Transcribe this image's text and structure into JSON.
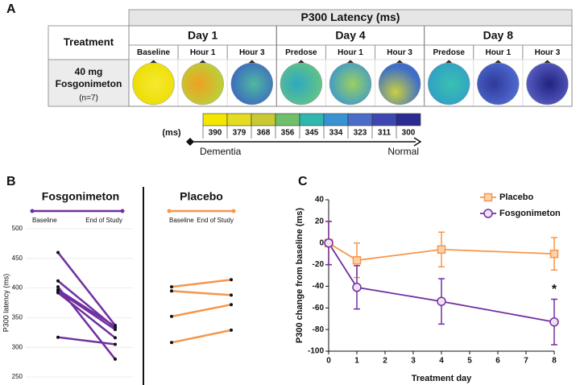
{
  "panel_labels": [
    "A",
    "B",
    "C"
  ],
  "panel_a": {
    "title": "P300 Latency (ms)",
    "treatment_header": "Treatment",
    "days": [
      {
        "label": "Day 1",
        "timepoints": [
          "Baseline",
          "Hour 1",
          "Hour 3"
        ]
      },
      {
        "label": "Day 4",
        "timepoints": [
          "Predose",
          "Hour 1",
          "Hour 3"
        ]
      },
      {
        "label": "Day 8",
        "timepoints": [
          "Predose",
          "Hour 1",
          "Hour 3"
        ]
      }
    ],
    "treatment_lines": [
      "40 mg",
      "Fosgonimeton"
    ],
    "n": "(n=7)",
    "colorbar": {
      "unit": "(ms)",
      "values": [
        390,
        379,
        368,
        356,
        345,
        334,
        323,
        311,
        300
      ],
      "colors": [
        "#f3e600",
        "#e3dc22",
        "#c9c934",
        "#6fbf6c",
        "#2db7ae",
        "#3a92d2",
        "#4a6ec8",
        "#3e47b0",
        "#2b2b92"
      ],
      "left_label": "Dementia",
      "right_label": "Normal"
    }
  },
  "chart_data": [
    {
      "type": "paired",
      "title": "Fosgonimeton",
      "categories": [
        "Baseline",
        "End of Study"
      ],
      "color": "#7030a0",
      "ylabel": "P300 latency (ms)",
      "ylim": [
        250,
        500
      ],
      "yticks": [
        250,
        300,
        350,
        400,
        450,
        500
      ],
      "grid": true,
      "series": [
        {
          "values": [
            460,
            337
          ]
        },
        {
          "values": [
            412,
            333
          ]
        },
        {
          "values": [
            402,
            280
          ]
        },
        {
          "values": [
            397,
            335
          ]
        },
        {
          "values": [
            392,
            316
          ]
        },
        {
          "values": [
            395,
            330
          ]
        },
        {
          "values": [
            317,
            305
          ]
        }
      ]
    },
    {
      "type": "paired",
      "title": "Placebo",
      "categories": [
        "Baseline",
        "End of Study"
      ],
      "color": "#f7964a",
      "ylim": [
        250,
        500
      ],
      "grid": false,
      "series": [
        {
          "values": [
            402,
            414
          ]
        },
        {
          "values": [
            395,
            388
          ]
        },
        {
          "values": [
            352,
            372
          ]
        },
        {
          "values": [
            308,
            329
          ]
        }
      ]
    },
    {
      "type": "line",
      "xlabel": "Treatment day",
      "ylabel": "P300 change from baseline (ms)",
      "x": [
        0,
        1,
        4,
        8
      ],
      "xlim": [
        0,
        8
      ],
      "xticks": [
        0,
        1,
        2,
        3,
        4,
        5,
        6,
        7,
        8
      ],
      "ylim": [
        -100,
        40
      ],
      "yticks": [
        -100,
        -80,
        -60,
        -40,
        -20,
        0,
        20,
        40
      ],
      "legend": "upper right",
      "annotation": "*",
      "series": [
        {
          "name": "Placebo",
          "color": "#f7964a",
          "marker": "square",
          "values": [
            0,
            -16,
            -6,
            -10
          ],
          "errors": [
            20,
            16,
            16,
            15
          ]
        },
        {
          "name": "Fosgonimeton",
          "color": "#7030a0",
          "marker": "circle",
          "values": [
            0,
            -41,
            -54,
            -73
          ],
          "errors": [
            20,
            20,
            21,
            21
          ]
        }
      ]
    }
  ]
}
